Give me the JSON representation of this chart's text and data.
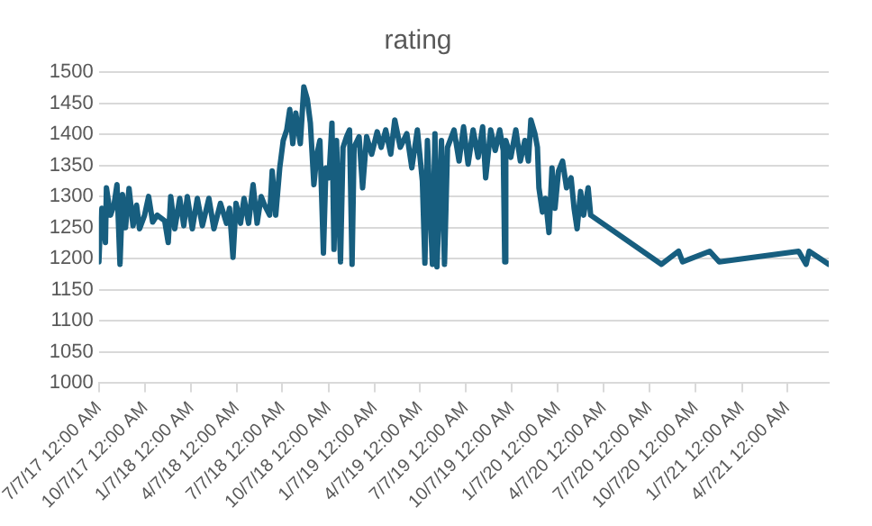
{
  "chart_data": {
    "type": "line",
    "title": "rating",
    "x": [
      "2017-07-07",
      "2017-07-10",
      "2017-07-13",
      "2017-07-20",
      "2017-07-22",
      "2017-07-30",
      "2017-08-06",
      "2017-08-12",
      "2017-08-18",
      "2017-08-23",
      "2017-08-29",
      "2017-09-05",
      "2017-09-13",
      "2017-09-20",
      "2017-09-26",
      "2017-10-06",
      "2017-10-14",
      "2017-10-22",
      "2017-10-31",
      "2017-11-15",
      "2017-11-22",
      "2017-11-27",
      "2017-12-05",
      "2017-12-15",
      "2017-12-23",
      "2017-12-30",
      "2018-01-09",
      "2018-01-19",
      "2018-01-29",
      "2018-02-11",
      "2018-02-21",
      "2018-03-06",
      "2018-03-18",
      "2018-03-24",
      "2018-03-31",
      "2018-04-06",
      "2018-04-15",
      "2018-04-22",
      "2018-05-01",
      "2018-05-10",
      "2018-05-18",
      "2018-05-26",
      "2018-06-02",
      "2018-06-12",
      "2018-06-17",
      "2018-06-24",
      "2018-07-02",
      "2018-07-09",
      "2018-07-16",
      "2018-07-22",
      "2018-07-28",
      "2018-08-03",
      "2018-08-12",
      "2018-08-19",
      "2018-08-26",
      "2018-09-01",
      "2018-09-08",
      "2018-09-14",
      "2018-09-20",
      "2018-09-27",
      "2018-10-02",
      "2018-10-08",
      "2018-10-14",
      "2018-10-18",
      "2018-10-23",
      "2018-10-31",
      "2018-11-05",
      "2018-11-12",
      "2018-11-18",
      "2018-11-23",
      "2018-11-27",
      "2018-12-07",
      "2018-12-14",
      "2018-12-22",
      "2019-01-01",
      "2019-01-12",
      "2019-01-20",
      "2019-01-29",
      "2019-02-08",
      "2019-02-16",
      "2019-02-27",
      "2019-03-12",
      "2019-03-22",
      "2019-04-02",
      "2019-04-12",
      "2019-04-17",
      "2019-04-22",
      "2019-05-02",
      "2019-05-07",
      "2019-05-11",
      "2019-05-20",
      "2019-05-26",
      "2019-06-01",
      "2019-06-14",
      "2019-06-24",
      "2019-07-03",
      "2019-07-12",
      "2019-07-22",
      "2019-08-01",
      "2019-08-10",
      "2019-08-16",
      "2019-08-26",
      "2019-09-04",
      "2019-09-13",
      "2019-09-20",
      "2019-09-23",
      "2019-09-25",
      "2019-10-05",
      "2019-10-15",
      "2019-10-24",
      "2019-11-02",
      "2019-11-09",
      "2019-11-14",
      "2019-11-22",
      "2019-11-27",
      "2019-11-30",
      "2019-12-07",
      "2019-12-13",
      "2019-12-20",
      "2019-12-26",
      "2020-01-01",
      "2020-01-08",
      "2020-01-16",
      "2020-01-24",
      "2020-02-02",
      "2020-02-08",
      "2020-02-14",
      "2020-02-21",
      "2020-02-27",
      "2020-03-07",
      "2020-03-12",
      "2020-07-31",
      "2020-09-03",
      "2020-09-11",
      "2020-11-04",
      "2020-11-23",
      "2021-04-30",
      "2021-05-15",
      "2021-05-21",
      "2021-06-29"
    ],
    "values": [
      1195,
      1257,
      1281,
      1226,
      1314,
      1270,
      1286,
      1319,
      1191,
      1303,
      1250,
      1313,
      1253,
      1286,
      1248,
      1270,
      1300,
      1259,
      1270,
      1261,
      1226,
      1300,
      1248,
      1297,
      1253,
      1300,
      1248,
      1297,
      1253,
      1297,
      1248,
      1289,
      1257,
      1281,
      1202,
      1289,
      1257,
      1297,
      1257,
      1319,
      1257,
      1300,
      1286,
      1270,
      1341,
      1270,
      1346,
      1390,
      1407,
      1440,
      1385,
      1434,
      1385,
      1476,
      1456,
      1418,
      1319,
      1368,
      1390,
      1209,
      1346,
      1330,
      1418,
      1215,
      1390,
      1195,
      1379,
      1396,
      1407,
      1191,
      1379,
      1396,
      1314,
      1396,
      1368,
      1404,
      1379,
      1407,
      1368,
      1423,
      1379,
      1401,
      1346,
      1407,
      1325,
      1193,
      1390,
      1191,
      1401,
      1187,
      1390,
      1191,
      1379,
      1407,
      1357,
      1412,
      1352,
      1407,
      1363,
      1412,
      1330,
      1407,
      1374,
      1407,
      1374,
      1195,
      1390,
      1363,
      1407,
      1357,
      1390,
      1357,
      1423,
      1401,
      1379,
      1314,
      1275,
      1297,
      1242,
      1346,
      1281,
      1341,
      1357,
      1314,
      1330,
      1281,
      1248,
      1308,
      1270,
      1314,
      1270,
      1191,
      1212,
      1195,
      1212,
      1195,
      1212,
      1191,
      1212,
      1191
    ],
    "color": "#175e7f",
    "xlim": [
      "2017-07-07",
      "2021-06-29"
    ],
    "xticks": [
      {
        "value": "2017-07-07",
        "label": "7/7/17 12:00 AM"
      },
      {
        "value": "2017-10-07",
        "label": "10/7/17 12:00 AM"
      },
      {
        "value": "2018-01-07",
        "label": "1/7/18 12:00 AM"
      },
      {
        "value": "2018-04-07",
        "label": "4/7/18 12:00 AM"
      },
      {
        "value": "2018-07-07",
        "label": "7/7/18 12:00 AM"
      },
      {
        "value": "2018-10-07",
        "label": "10/7/18 12:00 AM"
      },
      {
        "value": "2019-01-07",
        "label": "1/7/19 12:00 AM"
      },
      {
        "value": "2019-04-07",
        "label": "4/7/19 12:00 AM"
      },
      {
        "value": "2019-07-07",
        "label": "7/7/19 12:00 AM"
      },
      {
        "value": "2019-10-07",
        "label": "10/7/19 12:00 AM"
      },
      {
        "value": "2020-01-07",
        "label": "1/7/20 12:00 AM"
      },
      {
        "value": "2020-04-07",
        "label": "4/7/20 12:00 AM"
      },
      {
        "value": "2020-07-07",
        "label": "7/7/20 12:00 AM"
      },
      {
        "value": "2020-10-07",
        "label": "10/7/20 12:00 AM"
      },
      {
        "value": "2021-01-07",
        "label": "1/7/21 12:00 AM"
      },
      {
        "value": "2021-04-07",
        "label": "4/7/21 12:00 AM"
      }
    ],
    "ylim": [
      1000,
      1500
    ],
    "yticks": [
      1000,
      1050,
      1100,
      1150,
      1200,
      1250,
      1300,
      1350,
      1400,
      1450,
      1500
    ],
    "grid": "y",
    "legend": false,
    "marker": "none",
    "line_style": "solid"
  }
}
